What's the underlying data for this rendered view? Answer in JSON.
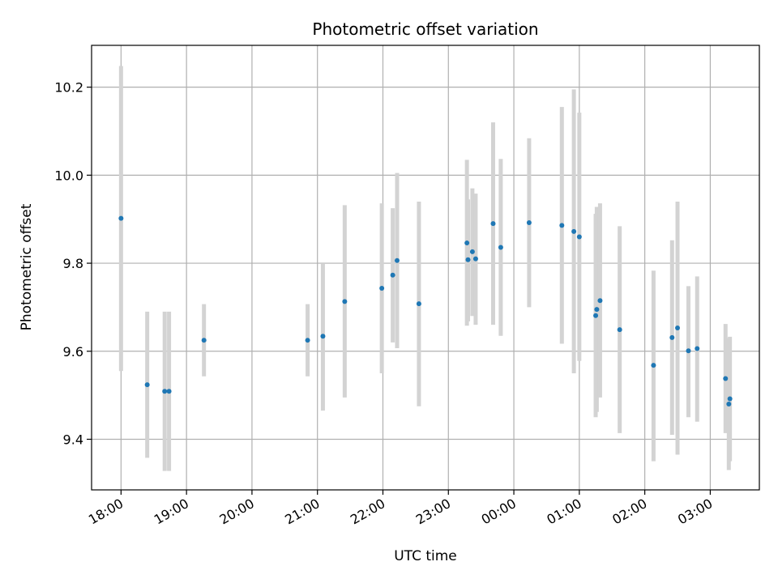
{
  "chart_data": {
    "type": "scatter",
    "title": "Photometric offset variation",
    "xlabel": "UTC time",
    "ylabel": "Photometric offset",
    "x_tick_labels": [
      "18:00",
      "19:00",
      "20:00",
      "21:00",
      "22:00",
      "23:00",
      "00:00",
      "01:00",
      "02:00",
      "03:00"
    ],
    "y_tick_labels": [
      "9.4",
      "9.6",
      "9.8",
      "10.0",
      "10.2"
    ],
    "y_ticks": [
      9.4,
      9.6,
      9.8,
      10.0,
      10.2
    ],
    "xlim_hours": [
      17.55,
      27.75
    ],
    "ylim": [
      9.285,
      10.295
    ],
    "grid": true,
    "point_color": "#1f77b4",
    "errorbar_color": "#d3d3d3",
    "points": [
      {
        "t": "18:00",
        "y": 9.902,
        "lo": 9.555,
        "hi": 10.248
      },
      {
        "t": "18:24",
        "y": 9.524,
        "lo": 9.358,
        "hi": 9.69
      },
      {
        "t": "18:40",
        "y": 9.509,
        "lo": 9.328,
        "hi": 9.69
      },
      {
        "t": "18:44",
        "y": 9.509,
        "lo": 9.328,
        "hi": 9.69
      },
      {
        "t": "19:16",
        "y": 9.625,
        "lo": 9.543,
        "hi": 9.707
      },
      {
        "t": "20:51",
        "y": 9.625,
        "lo": 9.543,
        "hi": 9.707
      },
      {
        "t": "21:05",
        "y": 9.634,
        "lo": 9.465,
        "hi": 9.8
      },
      {
        "t": "21:25",
        "y": 9.713,
        "lo": 9.495,
        "hi": 9.932
      },
      {
        "t": "21:59",
        "y": 9.743,
        "lo": 9.55,
        "hi": 9.936
      },
      {
        "t": "22:09",
        "y": 9.773,
        "lo": 9.62,
        "hi": 9.925
      },
      {
        "t": "22:13",
        "y": 9.806,
        "lo": 9.607,
        "hi": 10.005
      },
      {
        "t": "22:33",
        "y": 9.708,
        "lo": 9.475,
        "hi": 9.94
      },
      {
        "t": "23:17",
        "y": 9.846,
        "lo": 9.658,
        "hi": 10.035
      },
      {
        "t": "23:18",
        "y": 9.808,
        "lo": 9.668,
        "hi": 9.945
      },
      {
        "t": "23:22",
        "y": 9.826,
        "lo": 9.68,
        "hi": 9.97
      },
      {
        "t": "23:25",
        "y": 9.81,
        "lo": 9.66,
        "hi": 9.958
      },
      {
        "t": "23:41",
        "y": 9.89,
        "lo": 9.66,
        "hi": 10.12
      },
      {
        "t": "23:48",
        "y": 9.836,
        "lo": 9.635,
        "hi": 10.037
      },
      {
        "t": "00:14",
        "y": 9.892,
        "lo": 9.7,
        "hi": 10.084
      },
      {
        "t": "00:44",
        "y": 9.886,
        "lo": 9.617,
        "hi": 10.155
      },
      {
        "t": "00:55",
        "y": 9.872,
        "lo": 9.55,
        "hi": 10.195
      },
      {
        "t": "01:00",
        "y": 9.86,
        "lo": 9.578,
        "hi": 10.142
      },
      {
        "t": "01:15",
        "y": 9.681,
        "lo": 9.45,
        "hi": 9.912
      },
      {
        "t": "01:16",
        "y": 9.695,
        "lo": 9.462,
        "hi": 9.928
      },
      {
        "t": "01:19",
        "y": 9.715,
        "lo": 9.495,
        "hi": 9.936
      },
      {
        "t": "01:37",
        "y": 9.649,
        "lo": 9.414,
        "hi": 9.884
      },
      {
        "t": "02:08",
        "y": 9.568,
        "lo": 9.35,
        "hi": 9.783
      },
      {
        "t": "02:25",
        "y": 9.631,
        "lo": 9.41,
        "hi": 9.852
      },
      {
        "t": "02:30",
        "y": 9.653,
        "lo": 9.365,
        "hi": 9.94
      },
      {
        "t": "02:40",
        "y": 9.601,
        "lo": 9.45,
        "hi": 9.748
      },
      {
        "t": "02:48",
        "y": 9.606,
        "lo": 9.44,
        "hi": 9.77
      },
      {
        "t": "03:14",
        "y": 9.538,
        "lo": 9.414,
        "hi": 9.662
      },
      {
        "t": "03:17",
        "y": 9.48,
        "lo": 9.33,
        "hi": 9.63
      },
      {
        "t": "03:18",
        "y": 9.492,
        "lo": 9.35,
        "hi": 9.633
      }
    ]
  }
}
